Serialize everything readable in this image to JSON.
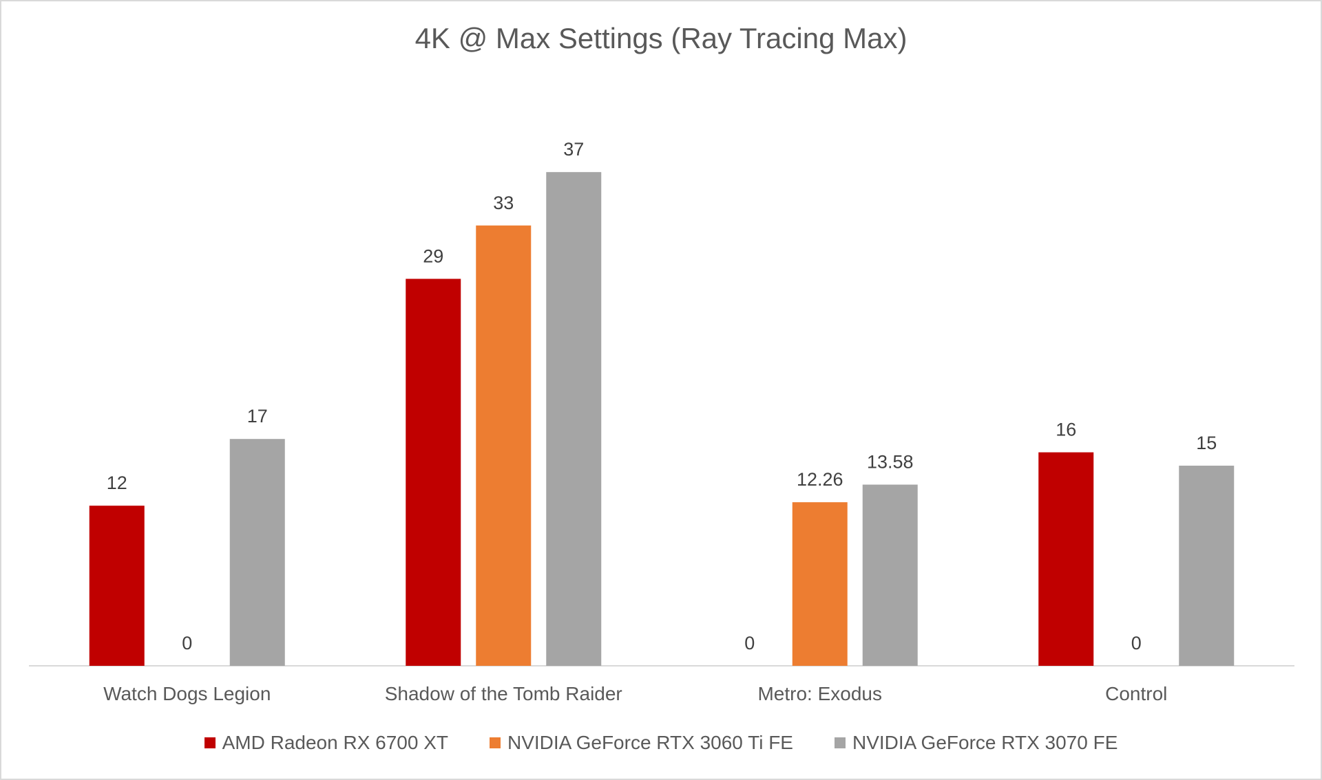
{
  "chart_data": {
    "type": "bar",
    "title": "4K @ Max Settings (Ray Tracing Max)",
    "categories": [
      "Watch Dogs Legion",
      "Shadow of the Tomb Raider",
      "Metro: Exodus",
      "Control"
    ],
    "series": [
      {
        "name": "AMD Radeon RX 6700 XT",
        "color": "#c00000",
        "values": [
          12,
          29,
          0,
          16
        ],
        "labels": [
          "12",
          "29",
          "0",
          "16"
        ]
      },
      {
        "name": "NVIDIA GeForce RTX 3060 Ti FE",
        "color": "#ed7d31",
        "values": [
          0,
          33,
          12.26,
          0
        ],
        "labels": [
          "0",
          "33",
          "12.26",
          "0"
        ]
      },
      {
        "name": "NVIDIA GeForce RTX 3070 FE",
        "color": "#a5a5a5",
        "values": [
          17,
          37,
          13.58,
          15
        ],
        "labels": [
          "17",
          "37",
          "13.58",
          "15"
        ]
      }
    ],
    "ylim": [
      0,
      40
    ],
    "grid": false,
    "legend_position": "bottom"
  }
}
